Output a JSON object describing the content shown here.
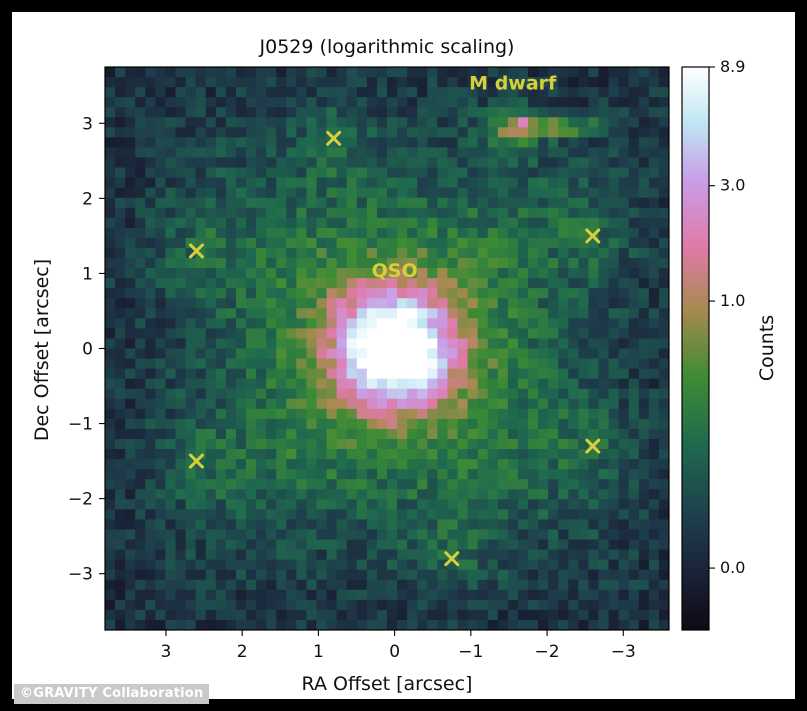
{
  "chart_data": {
    "type": "heatmap",
    "title": "J0529 (logarithmic scaling)",
    "xlabel": "RA Offset [arcsec]",
    "ylabel": "Dec Offset [arcsec]",
    "xlim": [
      3.8,
      -3.6
    ],
    "ylim": [
      -3.75,
      3.75
    ],
    "x_ticks": [
      3,
      2,
      1,
      0,
      -1,
      -2,
      -3
    ],
    "x_tick_labels": [
      "3",
      "2",
      "1",
      "0",
      "−1",
      "−2",
      "−3"
    ],
    "y_ticks": [
      3,
      2,
      1,
      0,
      -1,
      -2,
      -3
    ],
    "y_tick_labels": [
      "3",
      "2",
      "1",
      "0",
      "−1",
      "−2",
      "−3"
    ],
    "colorbar": {
      "label": "Counts",
      "scale": "log",
      "ticks": [
        8.9,
        3.0,
        1.0,
        0.0
      ],
      "tick_labels": [
        "8.9",
        "3.0",
        "1.0",
        "0.0"
      ],
      "colormap": [
        "#0d0a14",
        "#1e2a3c",
        "#1f5a52",
        "#2a8a3c",
        "#7a9a36",
        "#c7707a",
        "#e888c8",
        "#c8b0f0",
        "#d8f4f4",
        "#ffffff"
      ]
    },
    "sources": [
      {
        "name": "QSO",
        "label": "QSO",
        "x": 0.0,
        "y": 0.0
      },
      {
        "name": "M dwarf",
        "label": "M dwarf",
        "x": -1.55,
        "y": 2.95
      }
    ],
    "markers": [
      {
        "x": 0.8,
        "y": 2.8
      },
      {
        "x": 2.6,
        "y": 1.3
      },
      {
        "x": -2.6,
        "y": 1.5
      },
      {
        "x": 2.6,
        "y": -1.5
      },
      {
        "x": -2.6,
        "y": -1.3
      },
      {
        "x": -0.75,
        "y": -2.8
      }
    ],
    "marker_color": "#d9cf3a",
    "grid": false
  },
  "credit": "©GRAVITY Collaboration"
}
